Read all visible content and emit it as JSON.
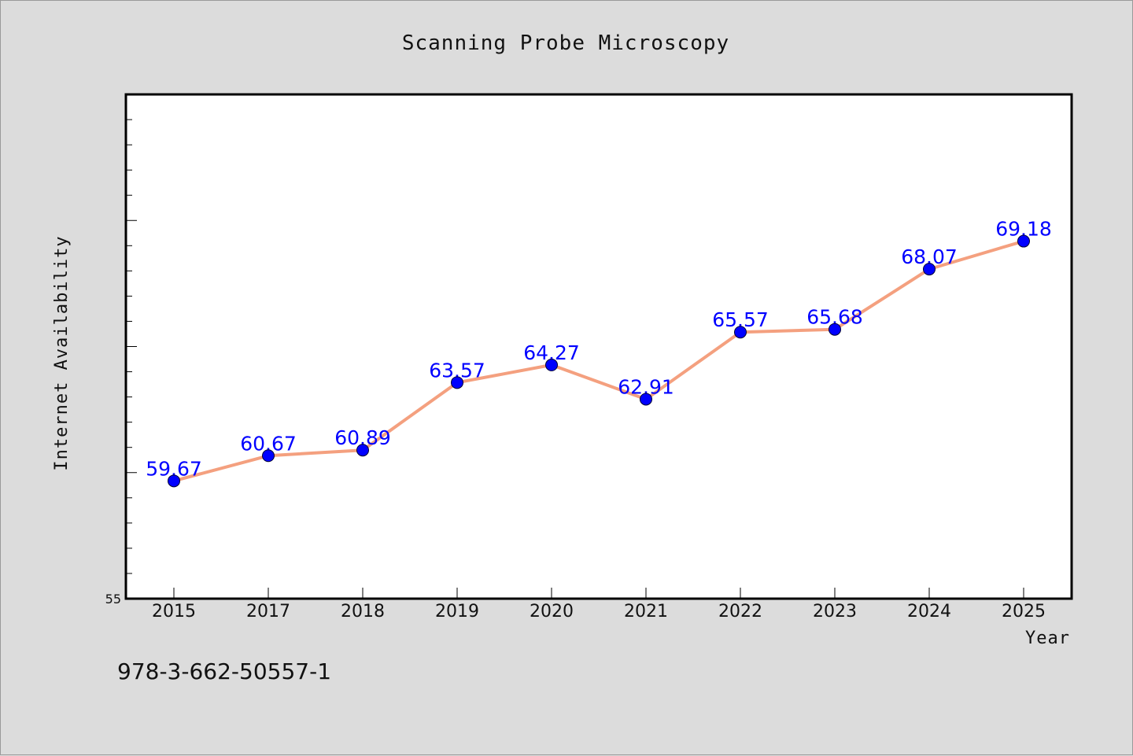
{
  "chart_data": {
    "type": "line",
    "title": "Scanning Probe Microscopy",
    "xlabel": "Year",
    "ylabel": "Internet Availability",
    "categories": [
      "2015",
      "2017",
      "2018",
      "2019",
      "2020",
      "2021",
      "2022",
      "2023",
      "2024",
      "2025"
    ],
    "series": [
      {
        "values": [
          59.67,
          60.67,
          60.89,
          63.57,
          64.27,
          62.91,
          65.57,
          65.68,
          68.07,
          69.18
        ],
        "labels": [
          "59.67",
          "60.67",
          "60.89",
          "63.57",
          "64.27",
          "62.91",
          "65.57",
          "65.68",
          "68.07",
          "69.18"
        ]
      }
    ],
    "ylim": [
      55,
      75
    ],
    "y_tick_label": "55",
    "grid": false,
    "line_color": "#f4a07f",
    "marker_color": "#0000ff",
    "label_color": "#0000ff"
  },
  "footer": {
    "isbn": "978-3-662-50557-1"
  }
}
